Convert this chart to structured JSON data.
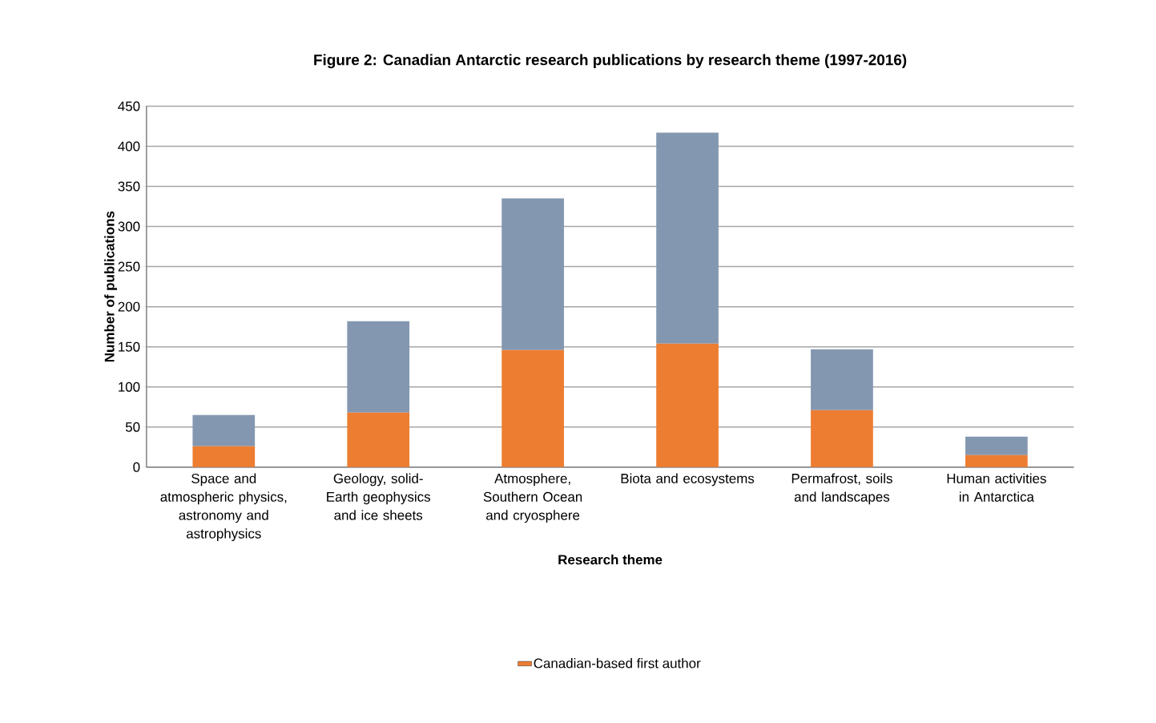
{
  "chart_data": {
    "type": "bar",
    "title": "Figure 2: Canadian Antarctic research publications by research theme (1997-2016)",
    "xlabel": "Research theme",
    "ylabel": "Number of publications",
    "categories": [
      "Space and atmospheric physics, astronomy and astrophysics",
      "Geology, solid-Earth geophysics and ice sheets",
      "Atmosphere, Southern Ocean and cryosphere",
      "Biota and ecosystems",
      "Permafrost, soils and landscapes",
      "Human activities in Antarctica"
    ],
    "series": [
      {
        "name": "Canadian-based first author",
        "color": "#ed7d31",
        "values": [
          26,
          68,
          146,
          154,
          71,
          15
        ]
      },
      {
        "color": "#8497b0",
        "values": [
          39,
          114,
          189,
          263,
          76,
          23
        ]
      }
    ],
    "stacked": true,
    "ylim": [
      0,
      450
    ],
    "yticks": [
      0,
      50,
      100,
      150,
      200,
      250,
      300,
      350,
      400,
      450
    ],
    "grid": "y",
    "legend": "bottom"
  }
}
